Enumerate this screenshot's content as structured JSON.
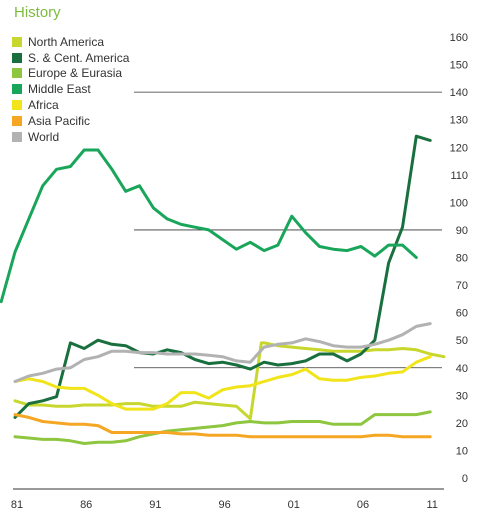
{
  "chart_data": {
    "type": "line",
    "title": "History",
    "xlabel": "",
    "ylabel": "",
    "ylim": [
      0,
      160
    ],
    "xlim": [
      1981,
      2012
    ],
    "x_tick_labels": [
      "81",
      "86",
      "91",
      "96",
      "01",
      "06",
      "11"
    ],
    "x_tick_years": [
      1981,
      1986,
      1991,
      1996,
      2001,
      2006,
      2011
    ],
    "y_ticks": [
      0,
      10,
      20,
      30,
      40,
      50,
      60,
      70,
      80,
      90,
      100,
      110,
      120,
      130,
      140,
      150,
      160
    ],
    "gridlines": "horizontal at 40, 90, 140 to the right of the legend area",
    "legend_position": "top-left",
    "series": [
      {
        "name": "North America",
        "color": "#c8d72e",
        "points": [
          [
            1981,
            28
          ],
          [
            1982,
            26.5
          ],
          [
            1983,
            26.5
          ],
          [
            1984,
            26
          ],
          [
            1985,
            26
          ],
          [
            1986,
            26.5
          ],
          [
            1987,
            26.5
          ],
          [
            1988,
            26.5
          ],
          [
            1989,
            27
          ],
          [
            1990,
            27
          ],
          [
            1991,
            26
          ],
          [
            1992,
            26
          ],
          [
            1993,
            26
          ],
          [
            1994,
            27.5
          ],
          [
            1995,
            27
          ],
          [
            1996,
            26.5
          ],
          [
            1997,
            26
          ],
          [
            1998,
            21.5
          ],
          [
            1998.8,
            49
          ],
          [
            1999,
            49
          ],
          [
            2000,
            48
          ],
          [
            2001,
            47.5
          ],
          [
            2002,
            47
          ],
          [
            2003,
            46.5
          ],
          [
            2004,
            46
          ],
          [
            2005,
            46
          ],
          [
            2006,
            46
          ],
          [
            2007,
            46.5
          ],
          [
            2008,
            46.5
          ],
          [
            2009,
            47
          ],
          [
            2010,
            46.5
          ],
          [
            2011,
            45
          ],
          [
            2012,
            44
          ]
        ]
      },
      {
        "name": "S. & Cent. America",
        "color": "#1a6f3f",
        "points": [
          [
            1981,
            22
          ],
          [
            1982,
            27
          ],
          [
            1983,
            28
          ],
          [
            1984,
            29.5
          ],
          [
            1985,
            49
          ],
          [
            1986,
            47
          ],
          [
            1987,
            50
          ],
          [
            1988,
            48.5
          ],
          [
            1989,
            48
          ],
          [
            1990,
            45.5
          ],
          [
            1991,
            45
          ],
          [
            1992,
            46.5
          ],
          [
            1993,
            45.5
          ],
          [
            1994,
            43
          ],
          [
            1995,
            41.5
          ],
          [
            1996,
            42
          ],
          [
            1997,
            41
          ],
          [
            1998,
            39.5
          ],
          [
            1999,
            42
          ],
          [
            2000,
            41
          ],
          [
            2001,
            41.5
          ],
          [
            2002,
            42.5
          ],
          [
            2003,
            45
          ],
          [
            2004,
            45
          ],
          [
            2005,
            42.5
          ],
          [
            2006,
            45
          ],
          [
            2007,
            50
          ],
          [
            2008,
            78
          ],
          [
            2009,
            91
          ],
          [
            2010,
            124
          ],
          [
            2011,
            122.5
          ]
        ]
      },
      {
        "name": "Europe & Eurasia",
        "color": "#8ec63f",
        "points": [
          [
            1981,
            15
          ],
          [
            1982,
            14.5
          ],
          [
            1983,
            14
          ],
          [
            1984,
            14
          ],
          [
            1985,
            13.5
          ],
          [
            1986,
            12.5
          ],
          [
            1987,
            13
          ],
          [
            1988,
            13
          ],
          [
            1989,
            13.5
          ],
          [
            1990,
            15
          ],
          [
            1991,
            16
          ],
          [
            1992,
            17
          ],
          [
            1993,
            17.5
          ],
          [
            1994,
            18
          ],
          [
            1995,
            18.5
          ],
          [
            1996,
            19
          ],
          [
            1997,
            20
          ],
          [
            1998,
            20.5
          ],
          [
            1999,
            20
          ],
          [
            2000,
            20
          ],
          [
            2001,
            20.5
          ],
          [
            2002,
            20.5
          ],
          [
            2003,
            20.5
          ],
          [
            2004,
            19.5
          ],
          [
            2005,
            19.5
          ],
          [
            2006,
            19.5
          ],
          [
            2007,
            23
          ],
          [
            2008,
            23
          ],
          [
            2009,
            23
          ],
          [
            2010,
            23
          ],
          [
            2011,
            24
          ]
        ]
      },
      {
        "name": "Middle East",
        "color": "#19a65b",
        "points": [
          [
            1980,
            64
          ],
          [
            1981,
            82
          ],
          [
            1982,
            94
          ],
          [
            1983,
            106
          ],
          [
            1984,
            112
          ],
          [
            1985,
            113
          ],
          [
            1986,
            119
          ],
          [
            1987,
            119
          ],
          [
            1988,
            112
          ],
          [
            1989,
            104
          ],
          [
            1990,
            106
          ],
          [
            1991,
            98
          ],
          [
            1992,
            94
          ],
          [
            1993,
            92
          ],
          [
            1994,
            91
          ],
          [
            1995,
            90
          ],
          [
            1996,
            86.5
          ],
          [
            1997,
            83
          ],
          [
            1998,
            85.5
          ],
          [
            1999,
            82.5
          ],
          [
            2000,
            84.5
          ],
          [
            2001,
            95
          ],
          [
            2002,
            89
          ],
          [
            2003,
            84
          ],
          [
            2004,
            83
          ],
          [
            2005,
            82.5
          ],
          [
            2006,
            84
          ],
          [
            2007,
            80.5
          ],
          [
            2008,
            84.5
          ],
          [
            2009,
            84.5
          ],
          [
            2010,
            80
          ]
        ]
      },
      {
        "name": "Africa",
        "color": "#f2e41a",
        "points": [
          [
            1981,
            35
          ],
          [
            1982,
            36
          ],
          [
            1983,
            35
          ],
          [
            1984,
            33
          ],
          [
            1985,
            32.5
          ],
          [
            1986,
            32.5
          ],
          [
            1987,
            30
          ],
          [
            1988,
            27
          ],
          [
            1989,
            25
          ],
          [
            1990,
            25
          ],
          [
            1991,
            25
          ],
          [
            1992,
            27
          ],
          [
            1993,
            31
          ],
          [
            1994,
            31
          ],
          [
            1995,
            29
          ],
          [
            1996,
            32
          ],
          [
            1997,
            33
          ],
          [
            1998,
            33.5
          ],
          [
            1999,
            35
          ],
          [
            2000,
            36.5
          ],
          [
            2001,
            37.5
          ],
          [
            2002,
            39.5
          ],
          [
            2003,
            36
          ],
          [
            2004,
            35.5
          ],
          [
            2005,
            35.5
          ],
          [
            2006,
            36.5
          ],
          [
            2007,
            37
          ],
          [
            2008,
            38
          ],
          [
            2009,
            38.5
          ],
          [
            2010,
            42
          ],
          [
            2011,
            44
          ]
        ]
      },
      {
        "name": "Asia Pacific",
        "color": "#f5a623",
        "points": [
          [
            1981,
            23
          ],
          [
            1982,
            22
          ],
          [
            1983,
            20.5
          ],
          [
            1984,
            20
          ],
          [
            1985,
            19.5
          ],
          [
            1986,
            19.5
          ],
          [
            1987,
            19
          ],
          [
            1988,
            16.5
          ],
          [
            1989,
            16.5
          ],
          [
            1990,
            16.5
          ],
          [
            1991,
            16.5
          ],
          [
            1992,
            16.5
          ],
          [
            1993,
            16
          ],
          [
            1994,
            16
          ],
          [
            1995,
            15.5
          ],
          [
            1996,
            15.5
          ],
          [
            1997,
            15.5
          ],
          [
            1998,
            15
          ],
          [
            1999,
            15
          ],
          [
            2000,
            15
          ],
          [
            2001,
            15
          ],
          [
            2002,
            15
          ],
          [
            2003,
            15
          ],
          [
            2004,
            15
          ],
          [
            2005,
            15
          ],
          [
            2006,
            15
          ],
          [
            2007,
            15.5
          ],
          [
            2008,
            15.5
          ],
          [
            2009,
            15
          ],
          [
            2010,
            15
          ],
          [
            2011,
            15
          ]
        ]
      },
      {
        "name": "World",
        "color": "#b2b2b2",
        "points": [
          [
            1981,
            35
          ],
          [
            1982,
            37
          ],
          [
            1983,
            38
          ],
          [
            1984,
            39.5
          ],
          [
            1985,
            40
          ],
          [
            1986,
            43
          ],
          [
            1987,
            44
          ],
          [
            1988,
            46
          ],
          [
            1989,
            46
          ],
          [
            1990,
            45.5
          ],
          [
            1991,
            45.5
          ],
          [
            1992,
            45
          ],
          [
            1993,
            45
          ],
          [
            1994,
            45
          ],
          [
            1995,
            44.5
          ],
          [
            1996,
            44
          ],
          [
            1997,
            42.5
          ],
          [
            1998,
            42
          ],
          [
            1999,
            47.5
          ],
          [
            2000,
            48.5
          ],
          [
            2001,
            49
          ],
          [
            2002,
            50.5
          ],
          [
            2003,
            49.5
          ],
          [
            2004,
            48
          ],
          [
            2005,
            47.5
          ],
          [
            2006,
            47.5
          ],
          [
            2007,
            48.5
          ],
          [
            2008,
            50
          ],
          [
            2009,
            52
          ],
          [
            2010,
            55
          ],
          [
            2011,
            56
          ]
        ]
      }
    ]
  }
}
